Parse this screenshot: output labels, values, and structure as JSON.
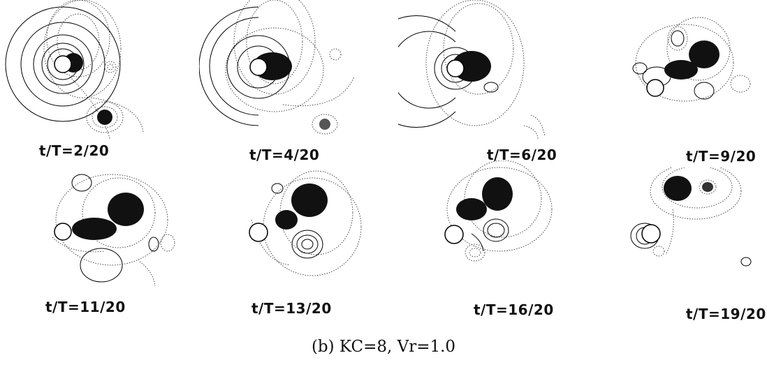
{
  "figure": {
    "panels": [
      {
        "label": "t/T=2/20"
      },
      {
        "label": "t/T=4/20"
      },
      {
        "label": "t/T=6/20"
      },
      {
        "label": "t/T=9/20"
      },
      {
        "label": "t/T=11/20"
      },
      {
        "label": "t/T=13/20"
      },
      {
        "label": "t/T=16/20"
      },
      {
        "label": "t/T=19/20"
      }
    ],
    "caption": "(b)   KC=8,  Vr=1.0"
  }
}
